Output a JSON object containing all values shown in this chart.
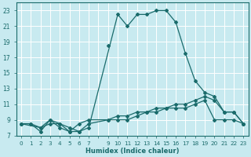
{
  "xlabel": "Humidex (Indice chaleur)",
  "bg_color": "#c8eaf0",
  "grid_color": "#aadddd",
  "line_color": "#1a6b6b",
  "xlim": [
    -0.5,
    23.5
  ],
  "ylim": [
    7,
    24
  ],
  "yticks": [
    7,
    9,
    11,
    13,
    15,
    17,
    19,
    21,
    23
  ],
  "series1_x": [
    0,
    1,
    2,
    3,
    4,
    5,
    6,
    7,
    10,
    11,
    12,
    13,
    14,
    15,
    16,
    17,
    18,
    19,
    20,
    21,
    22,
    23
  ],
  "series1_y": [
    8.5,
    8.5,
    8,
    9,
    8,
    7.5,
    7.5,
    8,
    22.5,
    21,
    22.5,
    22.5,
    23,
    23,
    21.5,
    17.5,
    14,
    12.5,
    12,
    10,
    10,
    8.5
  ],
  "series2_x": [
    0,
    1,
    2,
    3,
    4,
    5,
    6,
    7,
    9,
    10,
    11,
    12,
    13,
    14,
    15,
    16,
    17,
    18,
    19,
    20,
    21,
    22,
    23
  ],
  "series2_y": [
    8.5,
    8.5,
    7.5,
    9,
    8.5,
    7.5,
    8.5,
    9,
    9,
    9.5,
    9.5,
    10,
    10,
    10.5,
    10.5,
    11,
    11,
    11.5,
    12,
    11.5,
    10,
    10,
    8.5
  ],
  "series3_x": [
    0,
    2,
    3,
    4,
    5,
    6,
    7,
    9,
    10,
    11,
    12,
    13,
    14,
    15,
    16,
    17,
    18,
    19,
    20,
    21,
    22,
    23
  ],
  "series3_y": [
    8.5,
    8,
    8.5,
    8.5,
    8,
    7.5,
    8.5,
    9,
    9,
    9,
    9.5,
    10,
    10,
    10.5,
    10.5,
    10.5,
    11,
    11.5,
    9,
    9,
    9,
    8.5
  ],
  "series4_x": [
    9
  ],
  "series4_y": [
    18.5
  ]
}
